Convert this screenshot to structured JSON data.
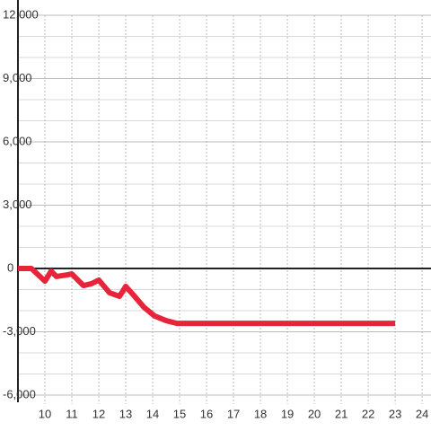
{
  "chart_data": {
    "type": "line",
    "x": [
      9,
      9.5,
      10,
      10.23,
      10.43,
      10.83,
      11,
      11.43,
      11.73,
      12,
      12.4,
      12.77,
      13,
      13.33,
      13.67,
      14.07,
      14.5,
      14.9,
      23
    ],
    "series": [
      {
        "color": "#e8243a",
        "values": [
          0,
          0,
          -600,
          -130,
          -380,
          -300,
          -260,
          -810,
          -720,
          -550,
          -1150,
          -1320,
          -850,
          -1320,
          -1830,
          -2250,
          -2470,
          -2600,
          -2600
        ]
      }
    ],
    "xlim": [
      9,
      24.33
    ],
    "xticks": [
      10,
      11,
      12,
      13,
      14,
      15,
      16,
      17,
      18,
      19,
      20,
      21,
      22,
      23,
      24
    ],
    "ylim": [
      -6000,
      12000
    ],
    "yticks": [
      {
        "value": -6000,
        "label": "-6,000"
      },
      {
        "value": -3000,
        "label": "-3,000"
      },
      0,
      {
        "value": 3000,
        "label": "3,000"
      },
      {
        "value": 6000,
        "label": "6,000"
      },
      {
        "value": 9000,
        "label": "9,000"
      },
      {
        "value": 12000,
        "label": "12,000"
      }
    ],
    "minor_yticks": [
      -5000,
      -4000,
      -2000,
      -1000,
      1000,
      2000,
      4000,
      5000,
      7000,
      8000,
      10000,
      11000
    ],
    "grid": true
  }
}
